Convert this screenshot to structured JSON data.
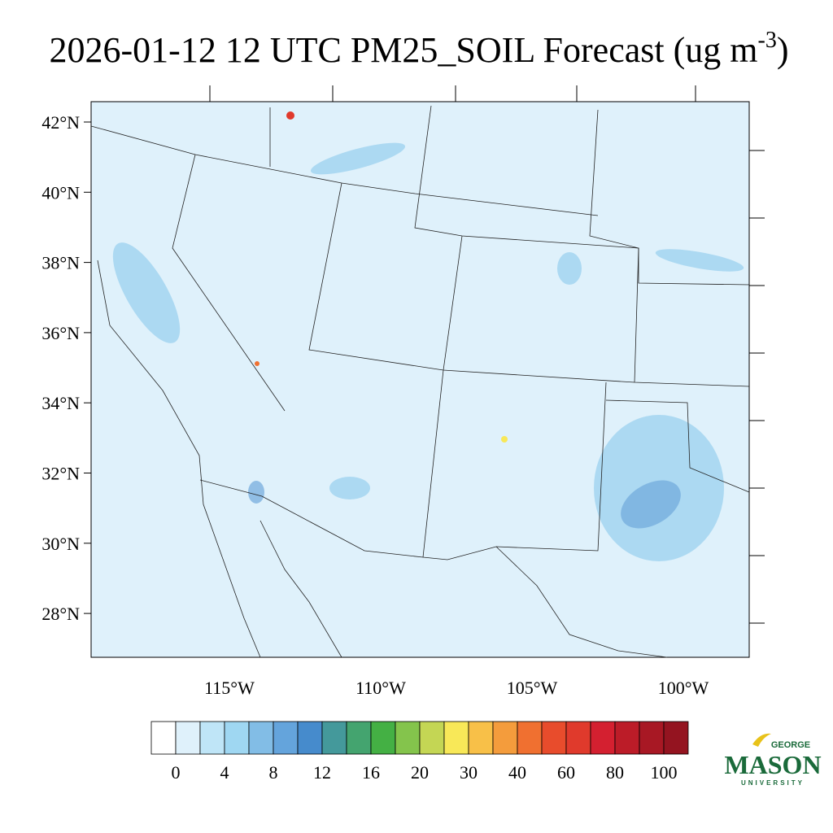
{
  "title": {
    "text": "2026-01-12 12 UTC PM25_SOIL Forecast (ug m",
    "superscript": "-3",
    "suffix": ")"
  },
  "map": {
    "latitude_labels": [
      "42°N",
      "40°N",
      "38°N",
      "36°N",
      "34°N",
      "32°N",
      "30°N",
      "28°N"
    ],
    "longitude_labels": [
      "115°W",
      "110°W",
      "105°W",
      "100°W"
    ]
  },
  "colorbar": {
    "labels": [
      0,
      4,
      8,
      12,
      16,
      20,
      30,
      40,
      60,
      80,
      100
    ],
    "colors": [
      "#ffffff",
      "#dff1fb",
      "#bfe5f7",
      "#9fd7f2",
      "#82bde6",
      "#64a4dc",
      "#468bcc",
      "#44999b",
      "#44a46f",
      "#44b044",
      "#84c44c",
      "#c4d654",
      "#f8e858",
      "#f8c048",
      "#f49c3c",
      "#f07030",
      "#e84c2c",
      "#e03a2c",
      "#d42030",
      "#bc1c28",
      "#a81824",
      "#941420"
    ]
  },
  "logo": {
    "top": "GEORGE",
    "main": "MASON",
    "bottom": "UNIVERSITY"
  }
}
